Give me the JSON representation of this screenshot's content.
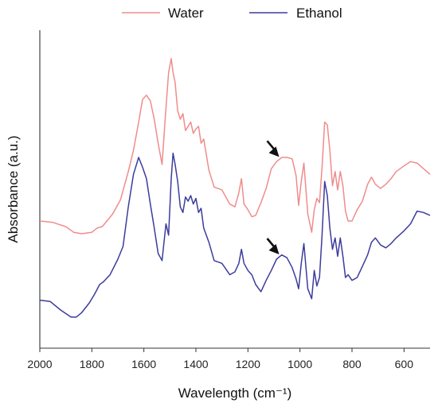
{
  "chart_data": {
    "type": "line",
    "xlabel": "Wavelength (cm⁻¹)",
    "ylabel": "Absorbance (a.u.)",
    "xlim": [
      2000,
      500
    ],
    "x_reversed": true,
    "xticks": [
      2000,
      1800,
      1600,
      1400,
      1200,
      1000,
      800,
      600
    ],
    "y_ticks_shown": false,
    "grid": false,
    "legend_position": "top-center",
    "series": [
      {
        "name": "Water",
        "color": "#f08c8c",
        "x": [
          2000,
          1950,
          1900,
          1870,
          1840,
          1800,
          1780,
          1760,
          1720,
          1690,
          1660,
          1640,
          1620,
          1605,
          1590,
          1575,
          1560,
          1545,
          1530,
          1515,
          1505,
          1495,
          1488,
          1480,
          1470,
          1460,
          1450,
          1440,
          1430,
          1420,
          1410,
          1400,
          1390,
          1380,
          1370,
          1350,
          1330,
          1300,
          1270,
          1250,
          1235,
          1225,
          1215,
          1200,
          1185,
          1170,
          1150,
          1130,
          1110,
          1090,
          1070,
          1050,
          1030,
          1015,
          1005,
          995,
          985,
          970,
          955,
          945,
          935,
          925,
          915,
          905,
          895,
          885,
          875,
          865,
          855,
          845,
          835,
          825,
          815,
          800,
          780,
          760,
          740,
          725,
          710,
          690,
          670,
          650,
          630,
          600,
          575,
          550,
          525,
          500
        ],
        "y": [
          0.6,
          0.59,
          0.56,
          0.52,
          0.51,
          0.52,
          0.55,
          0.56,
          0.65,
          0.75,
          0.95,
          1.1,
          1.3,
          1.46,
          1.49,
          1.45,
          1.32,
          1.15,
          1.0,
          1.4,
          1.65,
          1.75,
          1.65,
          1.58,
          1.38,
          1.32,
          1.36,
          1.24,
          1.27,
          1.3,
          1.22,
          1.25,
          1.27,
          1.15,
          1.18,
          0.96,
          0.84,
          0.82,
          0.72,
          0.7,
          0.8,
          0.9,
          0.72,
          0.68,
          0.63,
          0.64,
          0.73,
          0.83,
          0.97,
          1.02,
          1.05,
          1.05,
          1.04,
          0.92,
          0.71,
          0.88,
          1.01,
          0.65,
          0.52,
          0.68,
          0.76,
          0.73,
          0.98,
          1.3,
          1.28,
          1.1,
          0.85,
          0.95,
          0.82,
          0.95,
          0.85,
          0.67,
          0.6,
          0.6,
          0.68,
          0.74,
          0.86,
          0.91,
          0.86,
          0.83,
          0.86,
          0.9,
          0.95,
          0.99,
          1.02,
          1.01,
          0.97,
          0.93
        ]
      },
      {
        "name": "Ethanol",
        "color": "#3c3c9c",
        "x": [
          2000,
          1960,
          1920,
          1880,
          1860,
          1840,
          1810,
          1790,
          1770,
          1755,
          1730,
          1700,
          1680,
          1660,
          1640,
          1620,
          1605,
          1590,
          1575,
          1560,
          1545,
          1530,
          1515,
          1505,
          1495,
          1488,
          1480,
          1470,
          1460,
          1450,
          1440,
          1430,
          1420,
          1410,
          1400,
          1390,
          1380,
          1370,
          1350,
          1330,
          1300,
          1270,
          1250,
          1235,
          1225,
          1215,
          1200,
          1185,
          1170,
          1150,
          1130,
          1110,
          1090,
          1070,
          1050,
          1030,
          1015,
          1005,
          995,
          985,
          970,
          955,
          945,
          935,
          925,
          915,
          905,
          895,
          885,
          875,
          865,
          855,
          845,
          835,
          825,
          815,
          800,
          780,
          760,
          740,
          725,
          710,
          690,
          670,
          650,
          630,
          600,
          575,
          550,
          525,
          500
        ],
        "y": [
          0.04,
          0.03,
          -0.03,
          -0.08,
          -0.08,
          -0.05,
          0.02,
          0.08,
          0.15,
          0.17,
          0.22,
          0.33,
          0.42,
          0.7,
          0.93,
          1.05,
          0.98,
          0.9,
          0.72,
          0.55,
          0.37,
          0.32,
          0.58,
          0.5,
          0.9,
          1.08,
          1.0,
          0.88,
          0.7,
          0.66,
          0.77,
          0.74,
          0.78,
          0.72,
          0.76,
          0.66,
          0.69,
          0.55,
          0.45,
          0.32,
          0.3,
          0.22,
          0.24,
          0.3,
          0.4,
          0.3,
          0.25,
          0.22,
          0.15,
          0.1,
          0.18,
          0.25,
          0.33,
          0.36,
          0.34,
          0.27,
          0.19,
          0.12,
          0.3,
          0.44,
          0.12,
          0.05,
          0.25,
          0.14,
          0.2,
          0.5,
          0.88,
          0.78,
          0.55,
          0.4,
          0.48,
          0.35,
          0.48,
          0.35,
          0.2,
          0.22,
          0.18,
          0.2,
          0.28,
          0.36,
          0.45,
          0.48,
          0.43,
          0.41,
          0.44,
          0.48,
          0.53,
          0.58,
          0.67,
          0.66,
          0.64
        ]
      }
    ],
    "annotations": [
      {
        "type": "arrow",
        "series": "Water",
        "x": 1080,
        "y": 1.02
      },
      {
        "type": "arrow",
        "series": "Ethanol",
        "x": 1080,
        "y": 0.33
      }
    ]
  }
}
